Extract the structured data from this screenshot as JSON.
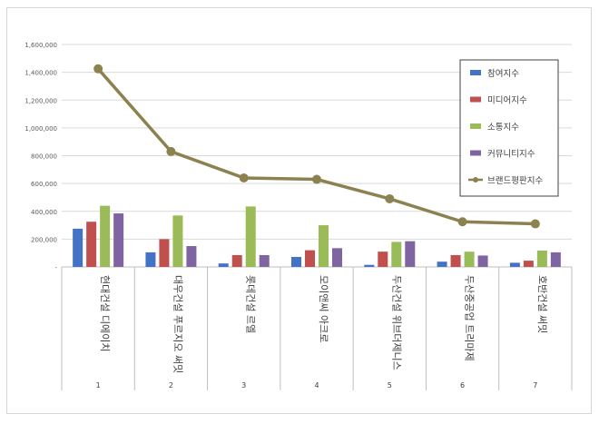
{
  "chart_data": {
    "type": "bar",
    "categories": [
      {
        "index": "1",
        "name": "현대건설 디에이치"
      },
      {
        "index": "2",
        "name": "대우건설 푸르지오 써밋"
      },
      {
        "index": "3",
        "name": "롯데건설 르엘"
      },
      {
        "index": "4",
        "name": "모이앤씨 아크로"
      },
      {
        "index": "5",
        "name": "두산건설 위브더제니스"
      },
      {
        "index": "6",
        "name": "두산중공업 트리마제"
      },
      {
        "index": "7",
        "name": "호반건설 써밋"
      }
    ],
    "y_ticks": [
      "1,600,000",
      "1,400,000",
      "1,200,000",
      "1,000,000",
      "800,000",
      "600,000",
      "400,000",
      "200,000",
      "-"
    ],
    "ylim": [
      0,
      1600000
    ],
    "grid": true,
    "legend_position": "right",
    "series": [
      {
        "name": "참여지수",
        "type": "bar",
        "color": "#4472c4",
        "values": [
          275000,
          105000,
          25000,
          72000,
          15000,
          38000,
          30000
        ]
      },
      {
        "name": "미디어지수",
        "type": "bar",
        "color": "#c0504d",
        "values": [
          325000,
          200000,
          85000,
          120000,
          110000,
          85000,
          45000
        ]
      },
      {
        "name": "소통지수",
        "type": "bar",
        "color": "#9bbb59",
        "values": [
          440000,
          370000,
          435000,
          300000,
          180000,
          110000,
          118000
        ]
      },
      {
        "name": "커뮤니티지수",
        "type": "bar",
        "color": "#8064a2",
        "values": [
          385000,
          150000,
          85000,
          135000,
          185000,
          82000,
          105000
        ]
      },
      {
        "name": "브랜드평판지수",
        "type": "line",
        "color": "#8c8250",
        "values": [
          1425000,
          830000,
          640000,
          630000,
          490000,
          325000,
          310000
        ]
      }
    ]
  }
}
